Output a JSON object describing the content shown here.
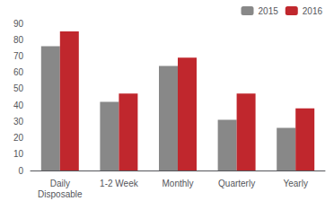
{
  "chart_data": {
    "type": "bar",
    "categories": [
      "Daily\nDisposable",
      "1-2 Week",
      "Monthly",
      "Quarterly",
      "Yearly"
    ],
    "series": [
      {
        "name": "2015",
        "color": "#888888",
        "values": [
          76,
          42,
          64,
          31,
          26
        ]
      },
      {
        "name": "2016",
        "color": "#c0272d",
        "values": [
          85,
          47,
          69,
          47,
          38
        ]
      }
    ],
    "ylim": [
      0,
      90
    ],
    "yticks": [
      0,
      10,
      20,
      30,
      40,
      50,
      60,
      70,
      80,
      90
    ],
    "grid": false,
    "legend": "upper right"
  }
}
